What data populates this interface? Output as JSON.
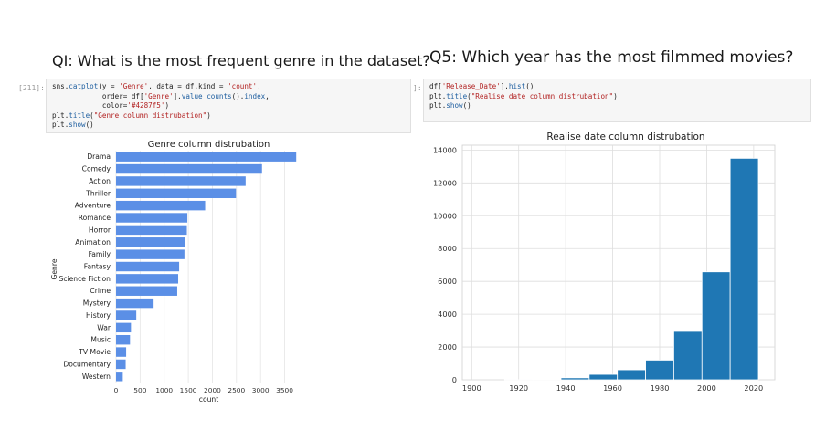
{
  "left": {
    "question": "QI: What is the most frequent genre in the dataset?",
    "prompt": "[211]:",
    "code_lines": [
      [
        {
          "t": "sns."
        },
        {
          "t": "catplot",
          "c": "fn"
        },
        {
          "t": "(y = "
        },
        {
          "t": "'Genre'",
          "c": "str"
        },
        {
          "t": ", data = df,kind = "
        },
        {
          "t": "'count'",
          "c": "str"
        },
        {
          "t": ","
        }
      ],
      [
        {
          "t": "            order= df["
        },
        {
          "t": "'Genre'",
          "c": "str"
        },
        {
          "t": "]."
        },
        {
          "t": "value_counts",
          "c": "fn"
        },
        {
          "t": "()."
        },
        {
          "t": "index",
          "c": "fn"
        },
        {
          "t": ","
        }
      ],
      [
        {
          "t": "            color="
        },
        {
          "t": "'#4287f5'",
          "c": "str"
        },
        {
          "t": ")"
        }
      ],
      [
        {
          "t": "plt."
        },
        {
          "t": "title",
          "c": "fn"
        },
        {
          "t": "("
        },
        {
          "t": "\"Genre column distrubation\"",
          "c": "str"
        },
        {
          "t": ")"
        }
      ],
      [
        {
          "t": "plt."
        },
        {
          "t": "show",
          "c": "fn"
        },
        {
          "t": "()"
        }
      ]
    ]
  },
  "right": {
    "question": "Q5: Which year has the most filmmed movies?",
    "prompt": "]:",
    "code_lines": [
      [
        {
          "t": "df["
        },
        {
          "t": "'Release_Date'",
          "c": "str"
        },
        {
          "t": "]."
        },
        {
          "t": "hist",
          "c": "fn"
        },
        {
          "t": "()"
        }
      ],
      [
        {
          "t": "plt."
        },
        {
          "t": "title",
          "c": "fn"
        },
        {
          "t": "("
        },
        {
          "t": "\"Realise date column distrubation\"",
          "c": "str"
        },
        {
          "t": ")"
        }
      ],
      [
        {
          "t": "plt."
        },
        {
          "t": "show",
          "c": "fn"
        },
        {
          "t": "()"
        }
      ]
    ]
  },
  "chart_data": [
    {
      "type": "bar",
      "orientation": "horizontal",
      "title": "Genre column distrubation",
      "xlabel": "count",
      "ylabel": "Genre",
      "categories": [
        "Drama",
        "Comedy",
        "Action",
        "Thriller",
        "Adventure",
        "Romance",
        "Horror",
        "Animation",
        "Family",
        "Fantasy",
        "Science Fiction",
        "Crime",
        "Mystery",
        "History",
        "War",
        "Music",
        "TV Movie",
        "Documentary",
        "Western"
      ],
      "values": [
        3740,
        3030,
        2690,
        2490,
        1850,
        1480,
        1470,
        1440,
        1420,
        1310,
        1290,
        1270,
        780,
        420,
        310,
        290,
        210,
        200,
        140
      ],
      "xlim": [
        0,
        3850
      ],
      "xticks": [
        0,
        500,
        1000,
        1500,
        2000,
        2500,
        3000,
        3500
      ],
      "color": "#5b8fe6",
      "grid": "vertical"
    },
    {
      "type": "bar",
      "subtype": "histogram",
      "title": "Realise date column distrubation",
      "bins": [
        {
          "start": 1902,
          "end": 1914,
          "count": 0
        },
        {
          "start": 1914,
          "end": 1926,
          "count": 5
        },
        {
          "start": 1926,
          "end": 1938,
          "count": 40
        },
        {
          "start": 1938,
          "end": 1950,
          "count": 120
        },
        {
          "start": 1950,
          "end": 1962,
          "count": 330
        },
        {
          "start": 1962,
          "end": 1974,
          "count": 610
        },
        {
          "start": 1974,
          "end": 1986,
          "count": 1200
        },
        {
          "start": 1986,
          "end": 1998,
          "count": 2950
        },
        {
          "start": 1998,
          "end": 2010,
          "count": 6580
        },
        {
          "start": 2010,
          "end": 2022,
          "count": 13500
        }
      ],
      "xlim": [
        1896,
        2029
      ],
      "ylim": [
        0,
        14300
      ],
      "xticks": [
        1900,
        1920,
        1940,
        1960,
        1980,
        2000,
        2020
      ],
      "yticks": [
        0,
        2000,
        4000,
        6000,
        8000,
        10000,
        12000,
        14000
      ],
      "color": "#1f77b4",
      "grid": "both"
    }
  ]
}
